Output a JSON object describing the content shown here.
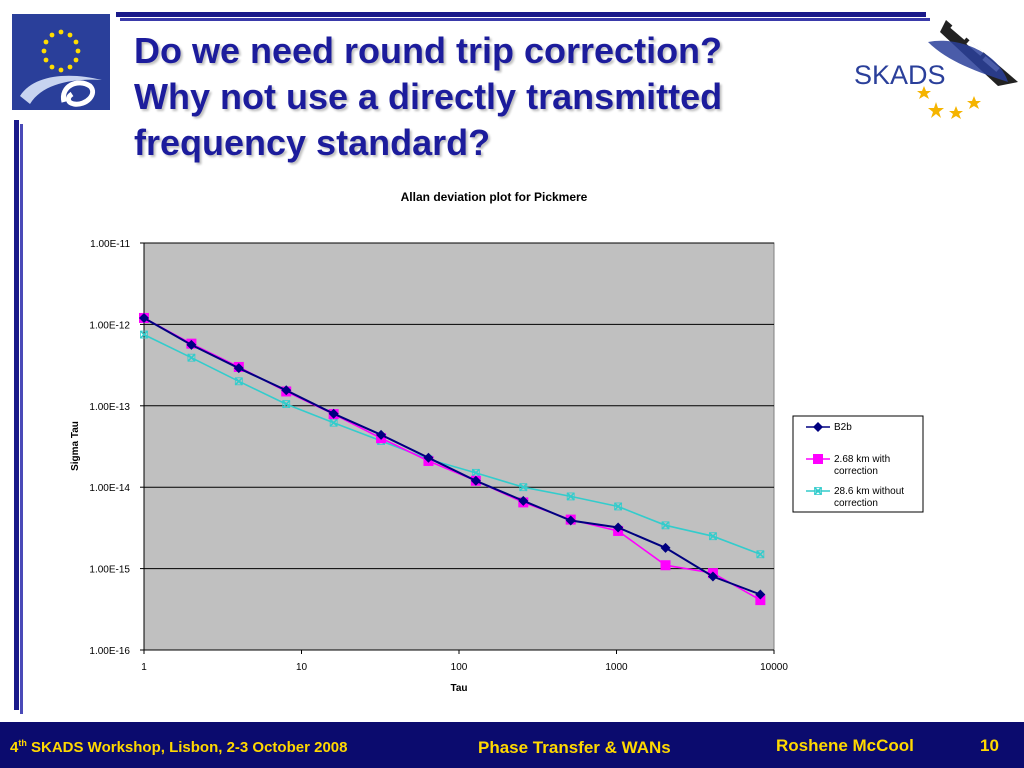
{
  "slide": {
    "title_lines": [
      "Do we need round trip correction?",
      "Why not use a directly transmitted",
      "frequency standard?"
    ],
    "logo_right_text": "SKADS"
  },
  "footer": {
    "left_num": "4",
    "left_sup": "th",
    "left_rest": " SKADS Workshop, Lisbon, 2-3 October 2008",
    "center": "Phase Transfer & WANs",
    "author": "Roshene McCool",
    "page": "10"
  },
  "colors": {
    "title": "#1c1c9c",
    "footer_bg": "#0b0b6e",
    "footer_text": "#ffd800",
    "plot_bg": "#c0c0c0"
  },
  "chart_data": {
    "type": "line",
    "title": "Allan deviation plot for Pickmere",
    "xlabel": "Tau",
    "ylabel": "Sigma Tau",
    "x_scale": "log",
    "y_scale": "log",
    "xlim": [
      1,
      10000
    ],
    "ylim": [
      1e-16,
      1e-11
    ],
    "x_ticks": [
      "1",
      "10",
      "100",
      "1000",
      "10000"
    ],
    "y_ticks": [
      "1.00E-16",
      "1.00E-15",
      "1.00E-14",
      "1.00E-13",
      "1.00E-12",
      "1.00E-11"
    ],
    "grid": "horizontal",
    "legend_position": "right",
    "x": [
      1,
      2,
      4,
      8,
      16,
      32,
      64,
      128,
      256,
      512,
      1024,
      2048,
      4096,
      8192
    ],
    "series": [
      {
        "name": "B2b",
        "color": "#000080",
        "marker": "diamond",
        "values": [
          1.2e-12,
          5.6e-13,
          2.9e-13,
          1.55e-13,
          8e-14,
          4.4e-14,
          2.3e-14,
          1.2e-14,
          6.8e-15,
          3.9e-15,
          3.2e-15,
          1.8e-15,
          8e-16,
          4.8e-16
        ]
      },
      {
        "name": "2.68 km with correction",
        "color": "#ff00ff",
        "marker": "square",
        "values": [
          1.2e-12,
          5.8e-13,
          3e-13,
          1.5e-13,
          7.9e-14,
          4e-14,
          2.1e-14,
          1.2e-14,
          6.5e-15,
          4e-15,
          2.9e-15,
          1.1e-15,
          8.8e-16,
          4.1e-16
        ]
      },
      {
        "name": "28.6 km without correction",
        "color": "#33cccc",
        "marker": "x",
        "values": [
          7.5e-13,
          3.9e-13,
          2e-13,
          1.05e-13,
          6.2e-14,
          3.7e-14,
          2.2e-14,
          1.5e-14,
          1e-14,
          7.7e-15,
          5.8e-15,
          3.4e-15,
          2.5e-15,
          1.5e-15
        ]
      }
    ]
  }
}
